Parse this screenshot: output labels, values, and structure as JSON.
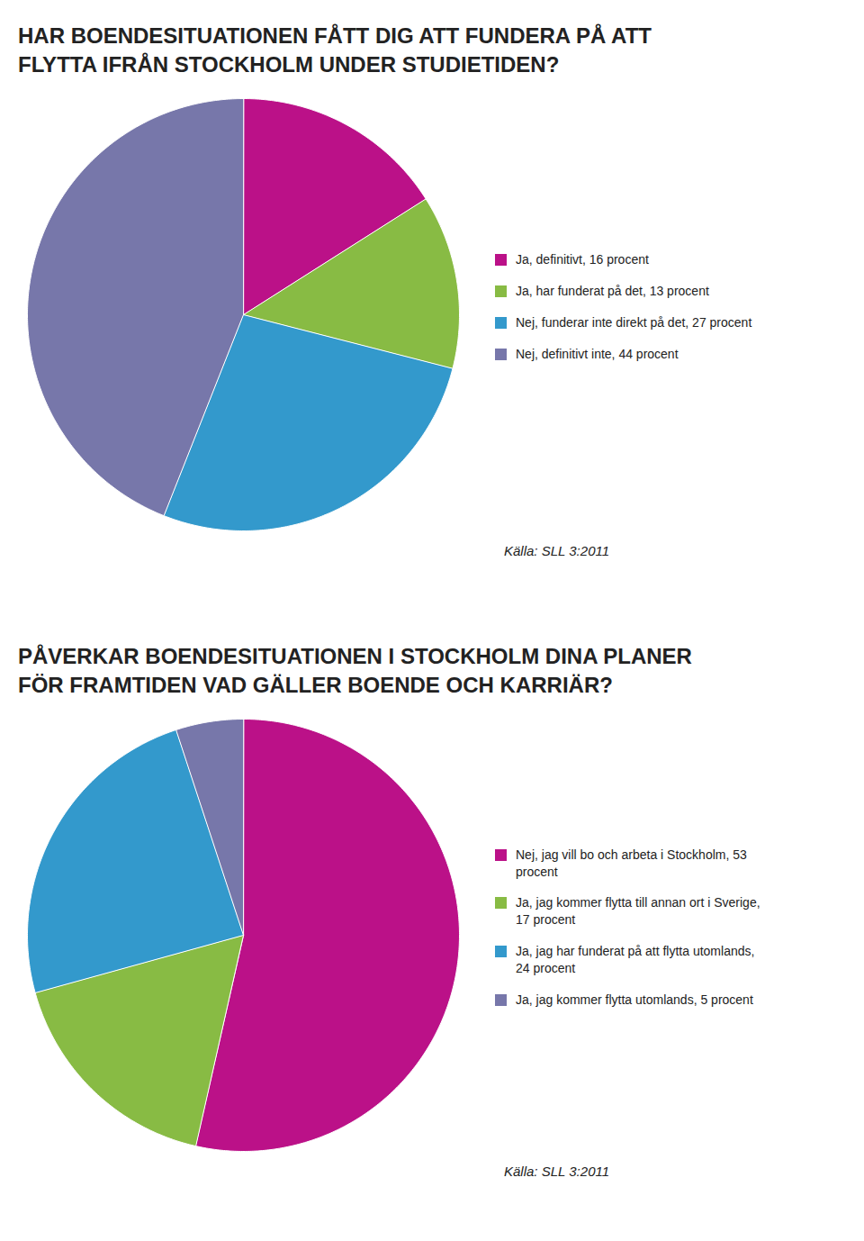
{
  "chart_data": [
    {
      "type": "pie",
      "title": "HAR BOENDESITUATIONEN FÅTT DIG ATT FUNDERA PÅ ATT\nFLYTTA IFRÅN STOCKHOLM UNDER STUDIETIDEN?",
      "categories": [
        "Ja, definitivt, 16 procent",
        "Ja, har funderat på det, 13 procent",
        "Nej, funderar inte direkt på det, 27 procent",
        "Nej, definitivt inte, 44 procent"
      ],
      "values": [
        16,
        13,
        27,
        44
      ],
      "colors": [
        "#BB1188",
        "#88BB44",
        "#3399CC",
        "#7777AA"
      ],
      "legend": "right",
      "annotations": [
        "Källa: SLL 3:2011"
      ]
    },
    {
      "type": "pie",
      "title": "PÅVERKAR BOENDESITUATIONEN I STOCKHOLM DINA PLANER\nFÖR FRAMTIDEN VAD GÄLLER BOENDE OCH KARRIÄR?",
      "categories": [
        "Nej, jag vill bo och arbeta i Stockholm, 53\nprocent",
        "Ja, jag kommer flytta till annan ort i Sverige,\n17 procent",
        "Ja, jag har funderat på att flytta utomlands,\n24 procent",
        "Ja, jag kommer flytta utomlands, 5 procent"
      ],
      "values": [
        53,
        17,
        24,
        5
      ],
      "colors": [
        "#BB1188",
        "#88BB44",
        "#3399CC",
        "#7777AA"
      ],
      "legend": "right",
      "annotations": [
        "Källa: SLL 3:2011"
      ]
    }
  ]
}
